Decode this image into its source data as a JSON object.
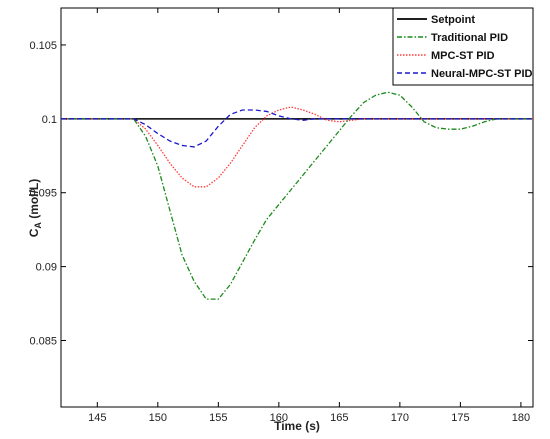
{
  "chart_data": {
    "type": "line",
    "xlabel": "Time (s)",
    "ylabel_main": "C",
    "ylabel_sub": "A",
    "ylabel_unit": " (mol/L)",
    "xlim": [
      142,
      181
    ],
    "ylim": [
      0.0805,
      0.1075
    ],
    "xticks": [
      145,
      150,
      155,
      160,
      165,
      170,
      175,
      180
    ],
    "yticks": [
      0.085,
      0.09,
      0.095,
      0.1,
      0.105
    ],
    "ytick_labels": [
      "0.085",
      "0.09",
      "0.095",
      "0.1",
      "0.105"
    ],
    "legend_position": "top-right",
    "series": [
      {
        "name": "Setpoint",
        "color": "#000000",
        "style": "solid",
        "x": [
          142,
          181
        ],
        "y": [
          0.1,
          0.1
        ]
      },
      {
        "name": "Traditional PID",
        "color": "#1a8a1a",
        "style": "dashdot",
        "x": [
          142,
          148,
          149,
          150,
          151,
          152,
          153,
          154,
          155,
          156,
          157,
          158,
          159,
          160,
          161,
          162,
          163,
          164,
          165,
          166,
          167,
          168,
          169,
          170,
          171,
          172,
          173,
          174,
          175,
          176,
          177,
          178,
          181
        ],
        "y": [
          0.1,
          0.1,
          0.0988,
          0.0968,
          0.0938,
          0.0908,
          0.089,
          0.0878,
          0.0878,
          0.0888,
          0.0903,
          0.0918,
          0.0932,
          0.0942,
          0.0952,
          0.0962,
          0.0972,
          0.0982,
          0.0992,
          0.1002,
          0.1011,
          0.1016,
          0.1018,
          0.1016,
          0.1008,
          0.0998,
          0.0994,
          0.0993,
          0.0993,
          0.0995,
          0.0998,
          0.1,
          0.1
        ]
      },
      {
        "name": "MPC-ST PID",
        "color": "#ff3b3b",
        "style": "dotted",
        "x": [
          142,
          148,
          149,
          150,
          151,
          152,
          153,
          154,
          155,
          156,
          157,
          158,
          159,
          160,
          161,
          162,
          163,
          164,
          165,
          166,
          167,
          181
        ],
        "y": [
          0.1,
          0.1,
          0.0993,
          0.0982,
          0.097,
          0.096,
          0.0954,
          0.0954,
          0.096,
          0.097,
          0.0982,
          0.0994,
          0.1002,
          0.1006,
          0.1008,
          0.1006,
          0.1003,
          0.0999,
          0.0998,
          0.0999,
          0.1,
          0.1
        ]
      },
      {
        "name": "Neural-MPC-ST PID",
        "color": "#1a1acd",
        "style": "dashed",
        "x": [
          142,
          148,
          149,
          150,
          151,
          152,
          153,
          154,
          155,
          156,
          157,
          158,
          159,
          160,
          161,
          162,
          163,
          164,
          181
        ],
        "y": [
          0.1,
          0.1,
          0.0996,
          0.099,
          0.0985,
          0.0982,
          0.0981,
          0.0985,
          0.0995,
          0.1003,
          0.1006,
          0.1006,
          0.1005,
          0.1002,
          0.1,
          0.0999,
          0.1,
          0.1,
          0.1
        ]
      }
    ]
  }
}
